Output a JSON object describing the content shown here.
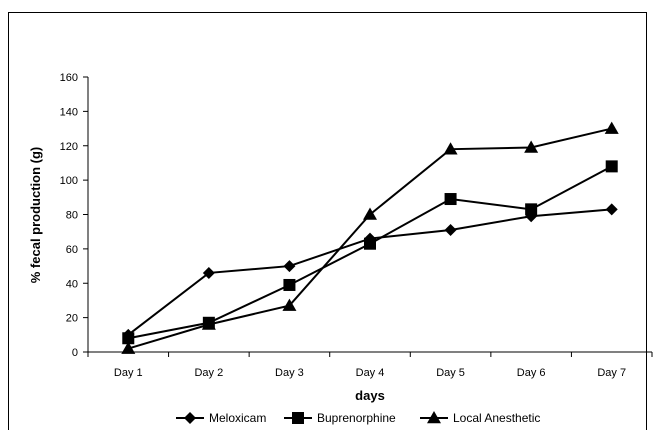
{
  "chart_data": {
    "type": "line",
    "title": "",
    "xlabel": "days",
    "ylabel": "% fecal production (g)",
    "categories": [
      "Day 1",
      "Day 2",
      "Day 3",
      "Day 4",
      "Day 5",
      "Day 6",
      "Day 7"
    ],
    "ylim": [
      0,
      160
    ],
    "yticks": [
      "0",
      "20",
      "40",
      "60",
      "80",
      "100",
      "120",
      "140",
      "160"
    ],
    "grid": false,
    "legend_position": "bottom",
    "series": [
      {
        "name": "Meloxicam",
        "marker": "diamond",
        "values": [
          10,
          46,
          50,
          66,
          71,
          79,
          83
        ]
      },
      {
        "name": "Buprenorphine",
        "marker": "square",
        "values": [
          8,
          17,
          39,
          63,
          89,
          83,
          108
        ]
      },
      {
        "name": "Local Anesthetic",
        "marker": "triangle",
        "values": [
          2,
          16,
          27,
          80,
          118,
          119,
          130
        ]
      }
    ],
    "color": "#000000"
  }
}
